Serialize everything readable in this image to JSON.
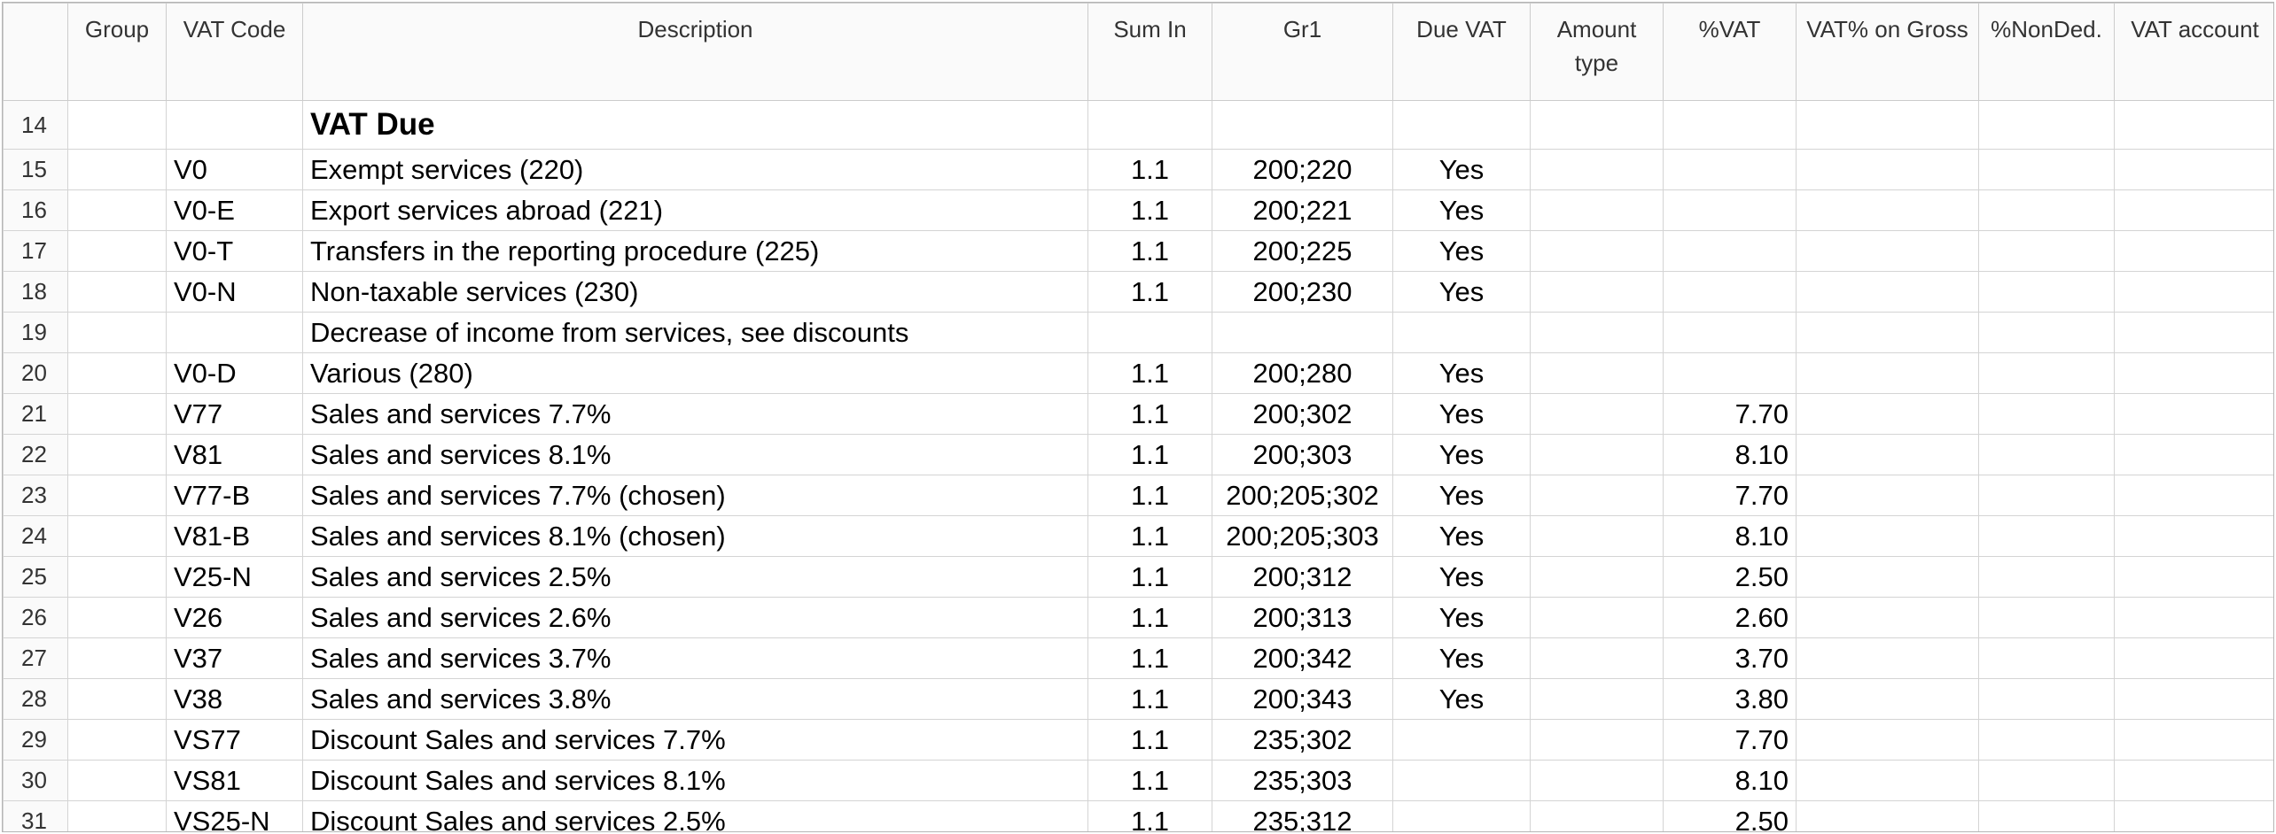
{
  "columns": [
    {
      "key": "rownum",
      "label": ""
    },
    {
      "key": "group",
      "label": "Group"
    },
    {
      "key": "vat_code",
      "label": "VAT Code"
    },
    {
      "key": "description",
      "label": "Description"
    },
    {
      "key": "sum_in",
      "label": "Sum In"
    },
    {
      "key": "gr1",
      "label": "Gr1"
    },
    {
      "key": "due_vat",
      "label": "Due VAT"
    },
    {
      "key": "amount_type",
      "label": "Amount type"
    },
    {
      "key": "pct_vat",
      "label": "%VAT"
    },
    {
      "key": "vat_on_gross",
      "label": "VAT% on Gross"
    },
    {
      "key": "pct_nonded",
      "label": "%NonDed."
    },
    {
      "key": "vat_account",
      "label": "VAT account"
    }
  ],
  "rows": [
    {
      "rownum": "14",
      "group": "",
      "vat_code": "",
      "description": "VAT Due",
      "sum_in": "",
      "gr1": "",
      "due_vat": "",
      "amount_type": "",
      "pct_vat": "",
      "vat_on_gross": "",
      "pct_nonded": "",
      "vat_account": "",
      "title": true
    },
    {
      "rownum": "15",
      "group": "",
      "vat_code": "V0",
      "description": "Exempt services (220)",
      "sum_in": "1.1",
      "gr1": "200;220",
      "due_vat": "Yes",
      "amount_type": "",
      "pct_vat": "",
      "vat_on_gross": "",
      "pct_nonded": "",
      "vat_account": ""
    },
    {
      "rownum": "16",
      "group": "",
      "vat_code": "V0-E",
      "description": "Export services abroad (221)",
      "sum_in": "1.1",
      "gr1": "200;221",
      "due_vat": "Yes",
      "amount_type": "",
      "pct_vat": "",
      "vat_on_gross": "",
      "pct_nonded": "",
      "vat_account": ""
    },
    {
      "rownum": "17",
      "group": "",
      "vat_code": "V0-T",
      "description": "Transfers in the reporting procedure (225)",
      "sum_in": "1.1",
      "gr1": "200;225",
      "due_vat": "Yes",
      "amount_type": "",
      "pct_vat": "",
      "vat_on_gross": "",
      "pct_nonded": "",
      "vat_account": ""
    },
    {
      "rownum": "18",
      "group": "",
      "vat_code": "V0-N",
      "description": "Non-taxable services (230)",
      "sum_in": "1.1",
      "gr1": "200;230",
      "due_vat": "Yes",
      "amount_type": "",
      "pct_vat": "",
      "vat_on_gross": "",
      "pct_nonded": "",
      "vat_account": ""
    },
    {
      "rownum": "19",
      "group": "",
      "vat_code": "",
      "description": "Decrease of income from services, see discounts",
      "sum_in": "",
      "gr1": "",
      "due_vat": "",
      "amount_type": "",
      "pct_vat": "",
      "vat_on_gross": "",
      "pct_nonded": "",
      "vat_account": ""
    },
    {
      "rownum": "20",
      "group": "",
      "vat_code": "V0-D",
      "description": "Various (280)",
      "sum_in": "1.1",
      "gr1": "200;280",
      "due_vat": "Yes",
      "amount_type": "",
      "pct_vat": "",
      "vat_on_gross": "",
      "pct_nonded": "",
      "vat_account": ""
    },
    {
      "rownum": "21",
      "group": "",
      "vat_code": "V77",
      "description": "Sales and services 7.7%",
      "sum_in": "1.1",
      "gr1": "200;302",
      "due_vat": "Yes",
      "amount_type": "",
      "pct_vat": "7.70",
      "vat_on_gross": "",
      "pct_nonded": "",
      "vat_account": ""
    },
    {
      "rownum": "22",
      "group": "",
      "vat_code": "V81",
      "description": "Sales and services 8.1%",
      "sum_in": "1.1",
      "gr1": "200;303",
      "due_vat": "Yes",
      "amount_type": "",
      "pct_vat": "8.10",
      "vat_on_gross": "",
      "pct_nonded": "",
      "vat_account": ""
    },
    {
      "rownum": "23",
      "group": "",
      "vat_code": "V77-B",
      "description": "Sales and services 7.7% (chosen)",
      "sum_in": "1.1",
      "gr1": "200;205;302",
      "due_vat": "Yes",
      "amount_type": "",
      "pct_vat": "7.70",
      "vat_on_gross": "",
      "pct_nonded": "",
      "vat_account": ""
    },
    {
      "rownum": "24",
      "group": "",
      "vat_code": "V81-B",
      "description": "Sales and services 8.1% (chosen)",
      "sum_in": "1.1",
      "gr1": "200;205;303",
      "due_vat": "Yes",
      "amount_type": "",
      "pct_vat": "8.10",
      "vat_on_gross": "",
      "pct_nonded": "",
      "vat_account": ""
    },
    {
      "rownum": "25",
      "group": "",
      "vat_code": "V25-N",
      "description": "Sales and services 2.5%",
      "sum_in": "1.1",
      "gr1": "200;312",
      "due_vat": "Yes",
      "amount_type": "",
      "pct_vat": "2.50",
      "vat_on_gross": "",
      "pct_nonded": "",
      "vat_account": ""
    },
    {
      "rownum": "26",
      "group": "",
      "vat_code": "V26",
      "description": "Sales and services 2.6%",
      "sum_in": "1.1",
      "gr1": "200;313",
      "due_vat": "Yes",
      "amount_type": "",
      "pct_vat": "2.60",
      "vat_on_gross": "",
      "pct_nonded": "",
      "vat_account": ""
    },
    {
      "rownum": "27",
      "group": "",
      "vat_code": "V37",
      "description": "Sales and services 3.7%",
      "sum_in": "1.1",
      "gr1": "200;342",
      "due_vat": "Yes",
      "amount_type": "",
      "pct_vat": "3.70",
      "vat_on_gross": "",
      "pct_nonded": "",
      "vat_account": ""
    },
    {
      "rownum": "28",
      "group": "",
      "vat_code": "V38",
      "description": "Sales and services 3.8%",
      "sum_in": "1.1",
      "gr1": "200;343",
      "due_vat": "Yes",
      "amount_type": "",
      "pct_vat": "3.80",
      "vat_on_gross": "",
      "pct_nonded": "",
      "vat_account": ""
    },
    {
      "rownum": "29",
      "group": "",
      "vat_code": "VS77",
      "description": "Discount Sales and services 7.7%",
      "sum_in": "1.1",
      "gr1": "235;302",
      "due_vat": "",
      "amount_type": "",
      "pct_vat": "7.70",
      "vat_on_gross": "",
      "pct_nonded": "",
      "vat_account": ""
    },
    {
      "rownum": "30",
      "group": "",
      "vat_code": "VS81",
      "description": "Discount Sales and services 8.1%",
      "sum_in": "1.1",
      "gr1": "235;303",
      "due_vat": "",
      "amount_type": "",
      "pct_vat": "8.10",
      "vat_on_gross": "",
      "pct_nonded": "",
      "vat_account": ""
    },
    {
      "rownum": "31",
      "group": "",
      "vat_code": "VS25-N",
      "description": "Discount Sales and services 2.5%",
      "sum_in": "1.1",
      "gr1": "235;312",
      "due_vat": "",
      "amount_type": "",
      "pct_vat": "2.50",
      "vat_on_gross": "",
      "pct_nonded": "",
      "vat_account": ""
    }
  ]
}
